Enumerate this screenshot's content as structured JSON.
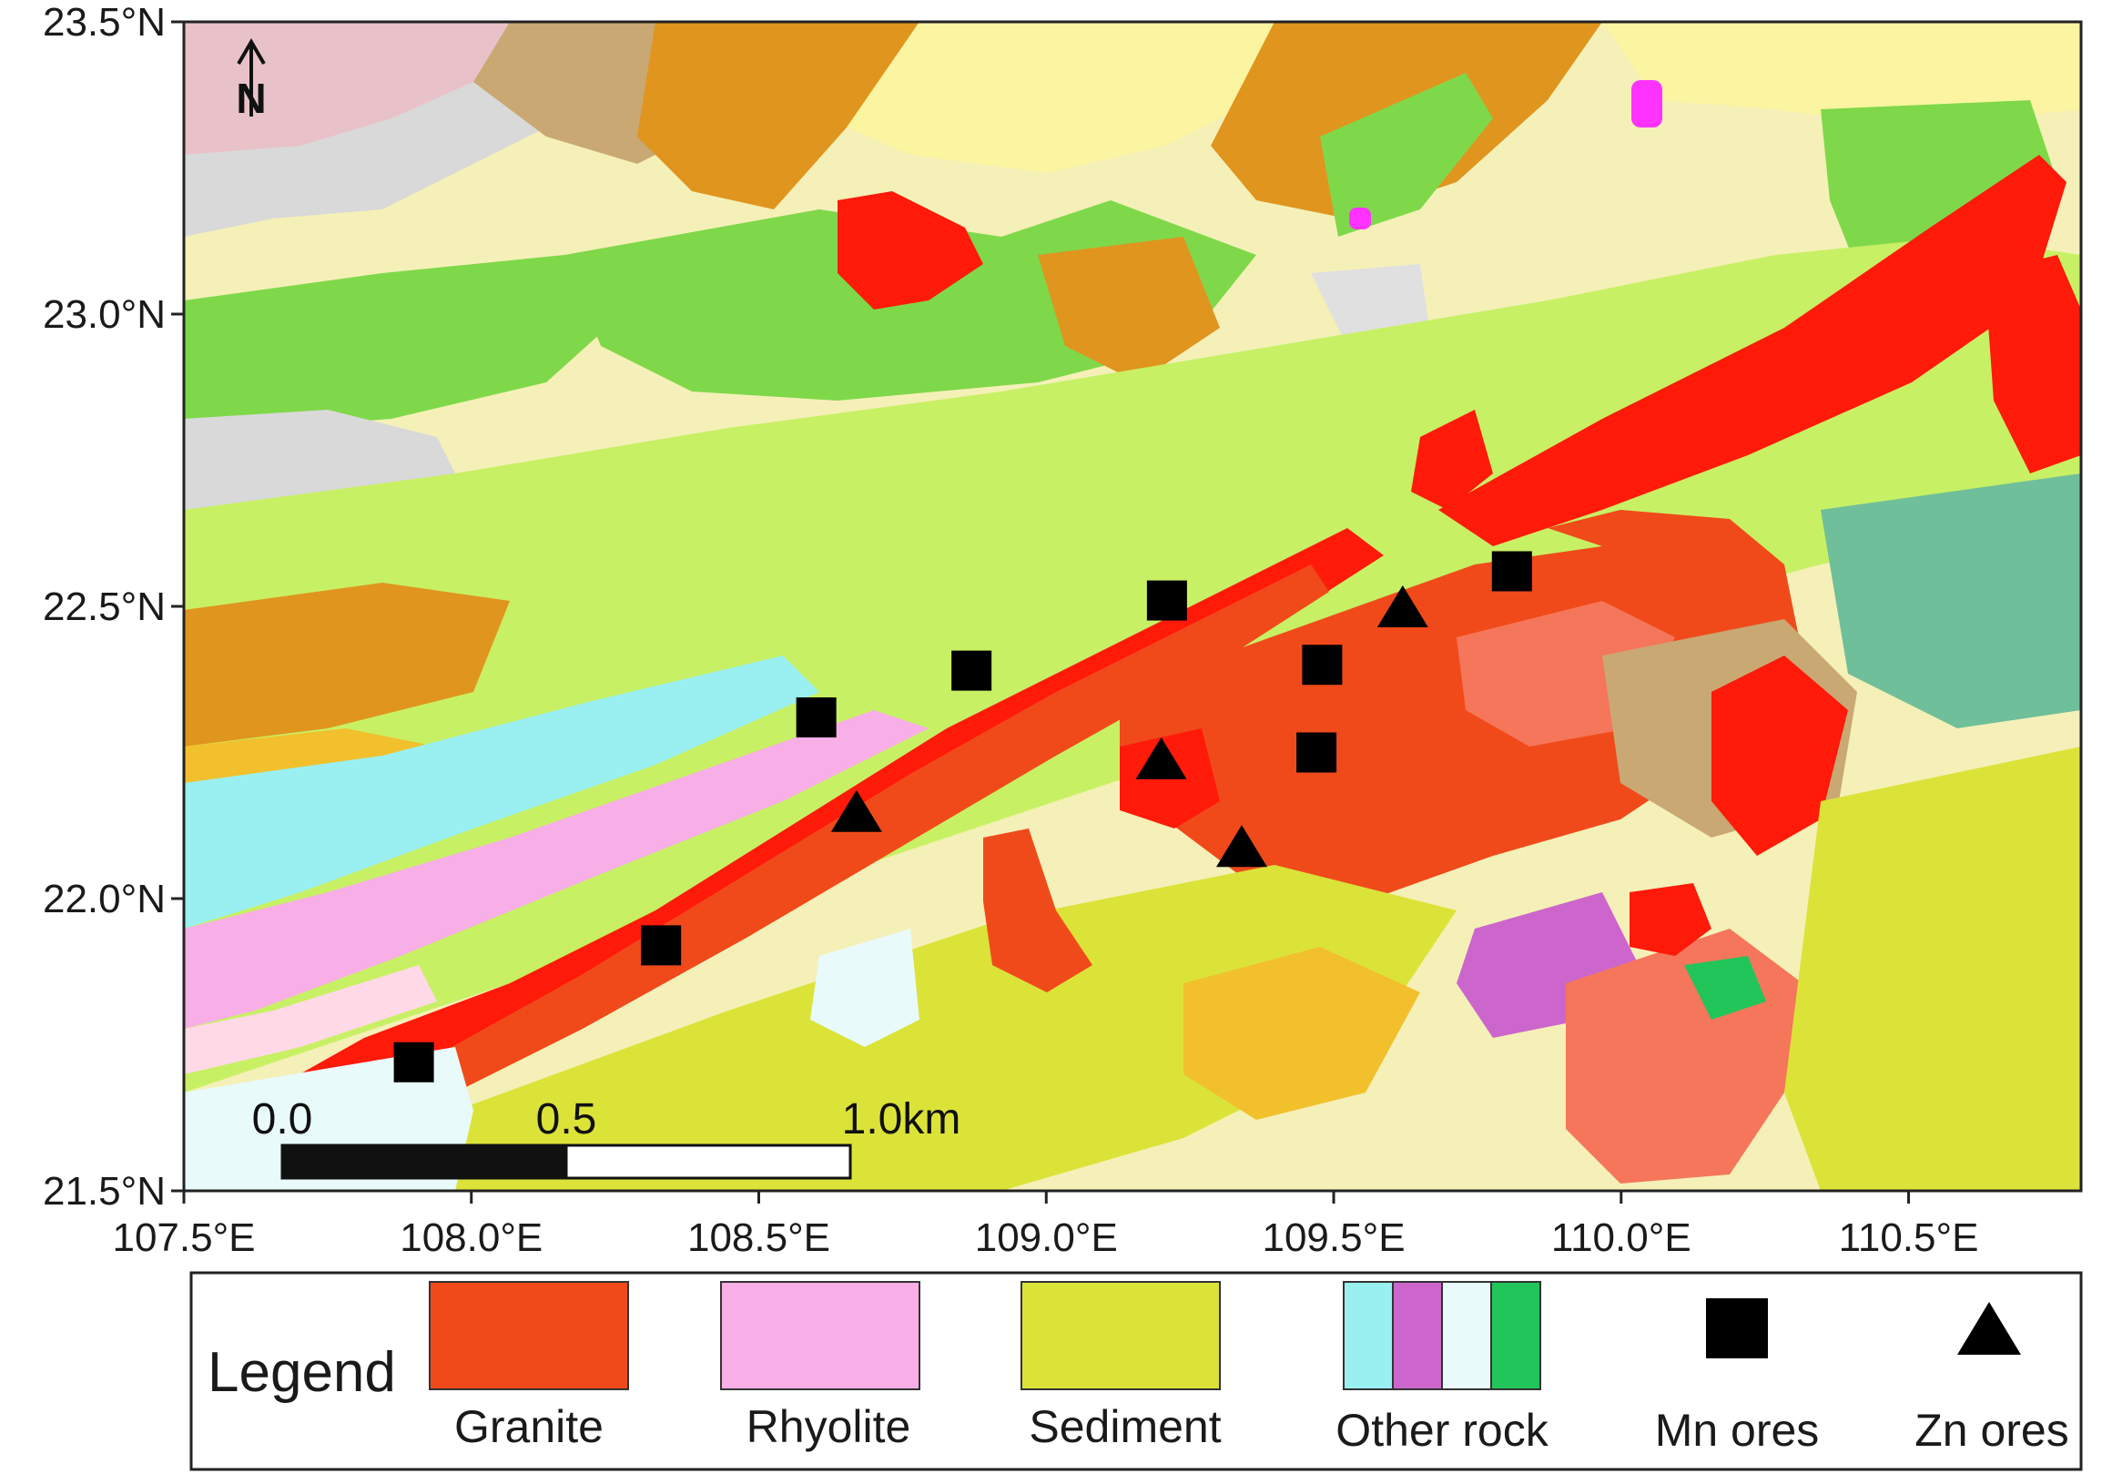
{
  "map": {
    "lon_range": [
      107.5,
      110.8
    ],
    "lat_range": [
      21.5,
      23.5
    ],
    "lon_ticks": [
      {
        "value": 107.5,
        "label": "107.5°E"
      },
      {
        "value": 108.0,
        "label": "108.0°E"
      },
      {
        "value": 108.5,
        "label": "108.5°E"
      },
      {
        "value": 109.0,
        "label": "109.0°E"
      },
      {
        "value": 109.5,
        "label": "109.5°E"
      },
      {
        "value": 110.0,
        "label": "110.0°E"
      },
      {
        "value": 110.5,
        "label": "110.5°E"
      }
    ],
    "lat_ticks": [
      {
        "value": 23.5,
        "label": "23.5°N"
      },
      {
        "value": 23.0,
        "label": "23.0°N"
      },
      {
        "value": 22.5,
        "label": "22.5°N"
      },
      {
        "value": 22.0,
        "label": "22.0°N"
      },
      {
        "value": 21.5,
        "label": "21.5°N"
      }
    ],
    "north_arrow_label": "N",
    "scale_bar": {
      "labels": [
        "0.0",
        "0.5",
        "1.0km"
      ]
    },
    "colors": {
      "granite": "#f04a1a",
      "granite_dark": "#ff1a0a",
      "granite_light": "#f5765a",
      "rhyolite": "#f8aee6",
      "sediment": "#dbe339",
      "sediment_light": "#c8f064",
      "green": "#7fd84a",
      "cyan": "#9af0f0",
      "purple": "#cc66cc",
      "pale": "#e9fafa",
      "dark_green": "#22c55a",
      "orange": "#e0951e",
      "yellow_pale": "#fbf4a0",
      "grey": "#d9d9d9",
      "magenta": "#ff33ff",
      "tan": "#c9a873",
      "teal": "#6fbf9a",
      "pink_pale": "#e8c2c8"
    },
    "mn_ores": [
      {
        "lon": 107.9,
        "lat": 21.72
      },
      {
        "lon": 108.33,
        "lat": 21.92
      },
      {
        "lon": 108.6,
        "lat": 22.31
      },
      {
        "lon": 108.87,
        "lat": 22.39
      },
      {
        "lon": 109.21,
        "lat": 22.51
      },
      {
        "lon": 109.48,
        "lat": 22.4
      },
      {
        "lon": 109.47,
        "lat": 22.25
      },
      {
        "lon": 109.81,
        "lat": 22.56
      }
    ],
    "zn_ores": [
      {
        "lon": 108.67,
        "lat": 22.15
      },
      {
        "lon": 109.2,
        "lat": 22.24
      },
      {
        "lon": 109.34,
        "lat": 22.09
      },
      {
        "lon": 109.62,
        "lat": 22.5
      }
    ]
  },
  "legend": {
    "title": "Legend",
    "items": [
      {
        "label": "Granite",
        "swatch": [
          "#f04a1a"
        ]
      },
      {
        "label": "Rhyolite",
        "swatch": [
          "#f8aee6"
        ]
      },
      {
        "label": "Sediment",
        "swatch": [
          "#dbe339"
        ]
      },
      {
        "label": "Other rock",
        "swatch": [
          "#9af0f0",
          "#cc66cc",
          "#e9fafa",
          "#22c55a"
        ]
      },
      {
        "label": "Mn ores",
        "symbol": "square"
      },
      {
        "label": "Zn ores",
        "symbol": "triangle"
      }
    ]
  }
}
